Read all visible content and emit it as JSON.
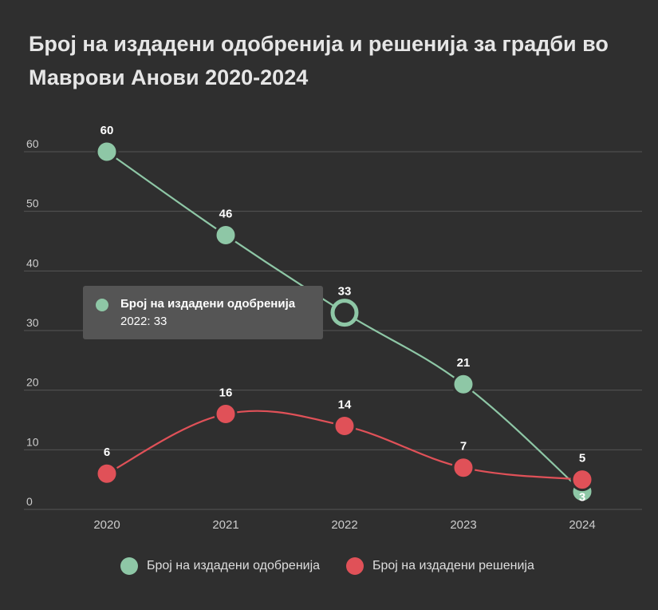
{
  "title": "Број на издадени одобренија и решенија за градби во Маврови Анови 2020-2024",
  "colors": {
    "background": "#2f2f2f",
    "grid": "#555555",
    "axis_text": "#cccccc",
    "series_green": "#8ec7a6",
    "series_red": "#e05158"
  },
  "chart_data": {
    "type": "line",
    "categories": [
      "2020",
      "2021",
      "2022",
      "2023",
      "2024"
    ],
    "y_ticks": [
      "0",
      "10",
      "20",
      "30",
      "40",
      "50",
      "60"
    ],
    "ylim": [
      0,
      60
    ],
    "grid": true,
    "legend_position": "bottom",
    "series": [
      {
        "name": "Број на издадени одобренија",
        "values": [
          60,
          46,
          33,
          21,
          3
        ],
        "color": "#8ec7a6"
      },
      {
        "name": "Број на издадени решенија",
        "values": [
          6,
          16,
          14,
          7,
          5
        ],
        "color": "#e05158"
      }
    ]
  },
  "tooltip": {
    "series": "Број на издадени одобренија",
    "value": "2022: 33",
    "color": "#8ec7a6"
  }
}
